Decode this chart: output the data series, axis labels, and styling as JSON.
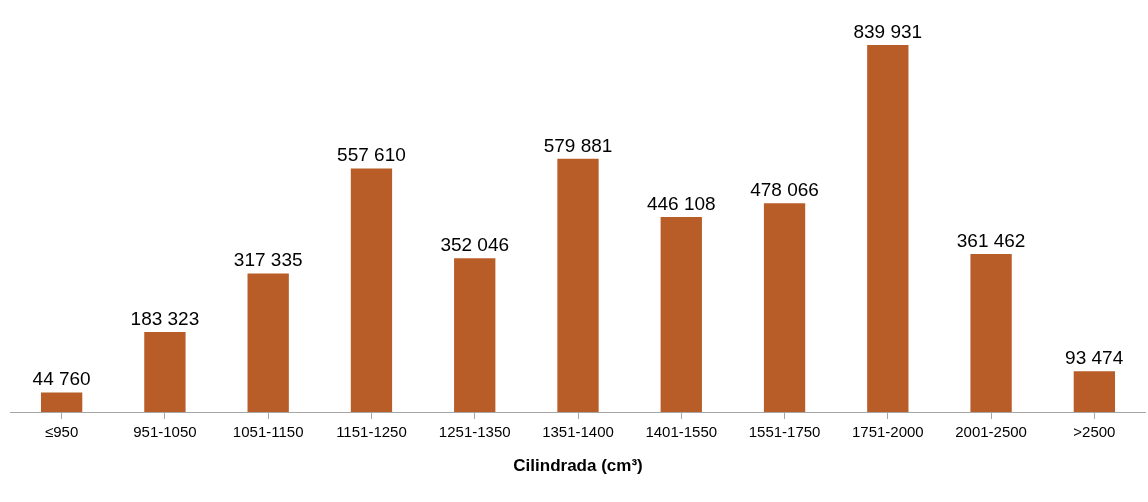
{
  "chart_data": {
    "type": "bar",
    "xlabel": "Cilindrada (cm³)",
    "categories": [
      "≤950",
      "951-1050",
      "1051-1150",
      "1151-1250",
      "1251-1350",
      "1351-1400",
      "1401-1550",
      "1551-1750",
      "1751-2000",
      "2001-2500",
      ">2500"
    ],
    "values": [
      44760,
      183323,
      317335,
      557610,
      352046,
      579881,
      446108,
      478066,
      839931,
      361462,
      93474
    ],
    "value_labels": [
      "44 760",
      "183 323",
      "317 335",
      "557 610",
      "352 046",
      "579 881",
      "446 108",
      "478 066",
      "839 931",
      "361 462",
      "93 474"
    ],
    "color": "#b85c28"
  }
}
